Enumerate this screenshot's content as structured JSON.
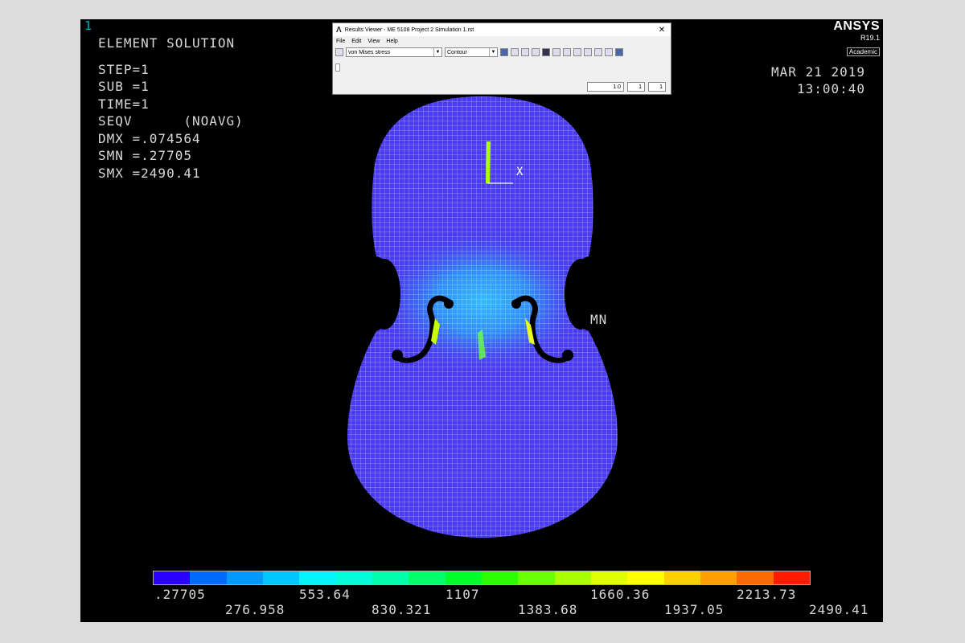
{
  "window_number": "1",
  "info": {
    "title": "ELEMENT SOLUTION",
    "lines": [
      "STEP=1",
      "SUB =1",
      "TIME=1",
      "SEQV      (NOAVG)",
      "DMX =.074564",
      "SMN =.27705",
      "SMX =2490.41"
    ]
  },
  "logo": {
    "name": "ANSYS",
    "version": "R19.1",
    "edition": "Academic"
  },
  "datetime": {
    "date": "MAR 21 2019",
    "time": "13:00:40"
  },
  "results_viewer": {
    "title": "Results Viewer - ME 5108 Project 2 Simulation 1.rst",
    "close": "✕",
    "menu": [
      "File",
      "Edit",
      "View",
      "Help"
    ],
    "result_item": "von Mises stress",
    "plot_type": "Contour",
    "scale": "1.0",
    "step_a": "1",
    "step_b": "1"
  },
  "plot": {
    "min_label": "MN",
    "triad_label": "X"
  },
  "legend": {
    "colors": [
      "#2a00ff",
      "#006aff",
      "#0099ff",
      "#00c8ff",
      "#00f5ff",
      "#00ffd8",
      "#00ffaa",
      "#00ff6a",
      "#00ff2a",
      "#2aff00",
      "#6aff00",
      "#aaff00",
      "#e0ff00",
      "#ffff00",
      "#ffd000",
      "#ffa000",
      "#ff6a00",
      "#ff1a00"
    ],
    "values_top": [
      ".27705",
      "553.64",
      "1107",
      "1660.36",
      "2213.73"
    ],
    "values_bottom": [
      "276.958",
      "830.321",
      "1383.68",
      "1937.05",
      "2490.41"
    ]
  }
}
